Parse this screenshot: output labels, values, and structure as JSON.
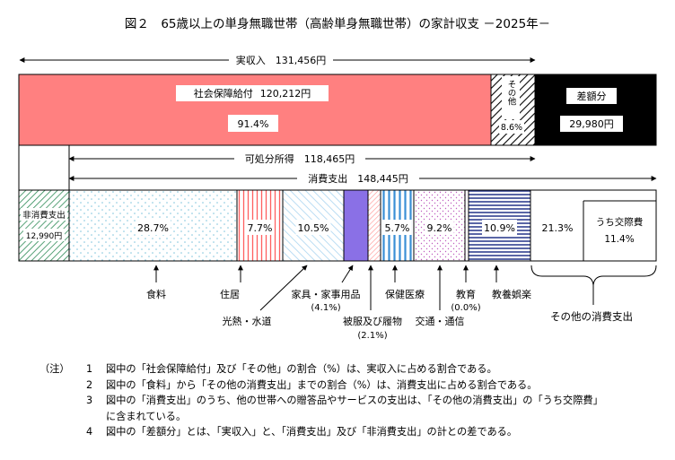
{
  "chart_data": {
    "type": "bar",
    "title": "図２　65歳以上の単身無職世帯（高齢単身無職世帯）の家計収支 －2025年－",
    "income_bar": {
      "label": "実収入　131,456円",
      "segments": [
        {
          "name": "社会保障給付",
          "amount_text": "120,212円",
          "pct_text": "91.4%",
          "value": 120212,
          "pct": 91.4,
          "color": "#ff8080"
        },
        {
          "name": "その他",
          "pct_text": "8.6%",
          "value": 11244,
          "pct": 8.6,
          "color": "#000000"
        },
        {
          "name": "差額分",
          "amount_text": "29,980円",
          "value": 29980,
          "color": "#000000"
        }
      ]
    },
    "disposable_income": {
      "label": "可処分所得　118,465円",
      "value": 118465
    },
    "consumption": {
      "label": "消費支出　148,445円",
      "value": 148445
    },
    "nonconsumption": {
      "name": "非消費支出",
      "amount_text": "12,990円",
      "value": 12990,
      "color": "#2e8b57"
    },
    "expenditure_segments": [
      {
        "name": "食料",
        "pct_text": "28.7%",
        "pct": 28.7,
        "color": "#9fd4e8"
      },
      {
        "name": "住居",
        "pct_text": "7.7%",
        "pct": 7.7,
        "color": "#ff6060"
      },
      {
        "name": "光熱・水道",
        "pct_text": "10.5%",
        "pct": 10.5,
        "color": "#a8d4f0"
      },
      {
        "name": "家具・家事用品",
        "sub_text": "(4.1%)",
        "pct": 4.1,
        "color": "#8a70e6"
      },
      {
        "name": "被服及び履物",
        "sub_text": "(2.1%)",
        "pct": 2.1,
        "color": "#ff9090"
      },
      {
        "name": "保健医療",
        "pct_text": "5.7%",
        "pct": 5.7,
        "color": "#3a8fd6"
      },
      {
        "name": "交通・通信",
        "pct_text": "9.2%",
        "pct": 9.2,
        "color": "#c060c0"
      },
      {
        "name": "教育",
        "sub_text": "(0.0%)",
        "pct": 0.0,
        "color": "#ffffff"
      },
      {
        "name": "教養娯楽",
        "pct_text": "10.9%",
        "pct": 10.9,
        "color": "#304090"
      },
      {
        "name": "その他の消費支出",
        "pct_text": "21.3%",
        "pct": 21.3,
        "color": "#ffffff"
      }
    ],
    "inner_segment": {
      "name": "うち交際費",
      "pct_text": "11.4%",
      "pct": 11.4
    }
  },
  "notes": {
    "head": "（注）",
    "items": [
      {
        "num": "1",
        "text": "図中の「社会保障給付」及び「その他」の割合（%）は、実収入に占める割合である。"
      },
      {
        "num": "2",
        "text": "図中の「食料」から「その他の消費支出」までの割合（%）は、消費支出に占める割合である。"
      },
      {
        "num": "3",
        "text": "図中の「消費支出」のうち、他の世帯への贈答品やサービスの支出は、「その他の消費支出」の「うち交際費」",
        "cont": "に含まれている。"
      },
      {
        "num": "4",
        "text": "図中の「差額分」とは、「実収入」と、「消費支出」及び「非消費支出」の計との差である。"
      }
    ]
  }
}
